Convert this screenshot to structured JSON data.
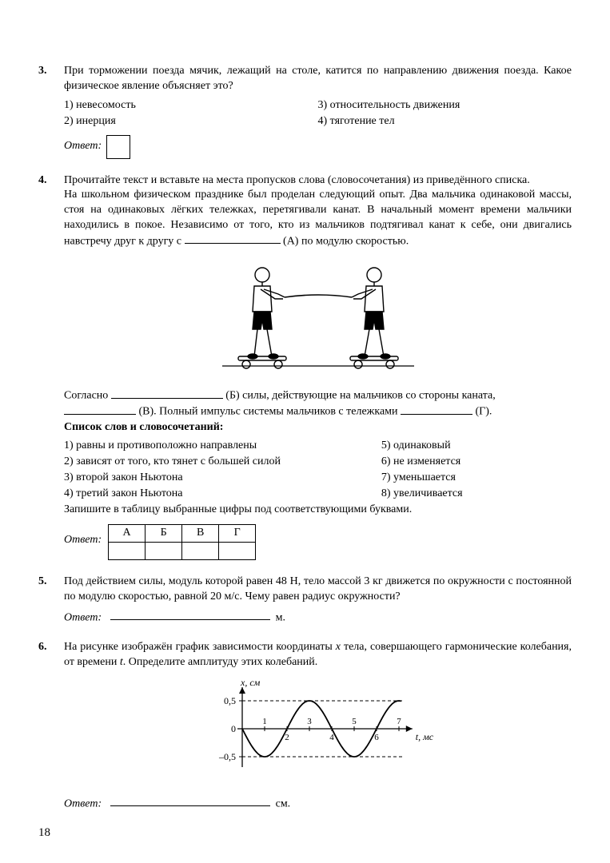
{
  "page_number": "18",
  "q3": {
    "number": "3.",
    "text": "При торможении поезда мячик, лежащий на столе, катится по направлению движения поезда. Какое физическое явление объясняет это?",
    "opts_left": [
      "1)  невесомость",
      "2)  инерция"
    ],
    "opts_right": [
      "3)  относительность движения",
      "4)  тяготение тел"
    ],
    "answer_label": "Ответ:"
  },
  "q4": {
    "number": "4.",
    "intro": "Прочитайте текст и вставьте на места пропусков слова (словосочетания) из приведённого списка.",
    "para_lead": "На школьном физическом празднике был проделан следующий опыт. Два мальчика одинаковой массы, стоя на одинаковых лёгких тележках, перетягивали канат. В начальный момент времени мальчики находились в покое. Независимо от того, кто из мальчиков подтягивал канат к себе, они двигались навстречу друг к другу с ",
    "para_tail": " (А) по модулю скоростью.",
    "line2_a": "Согласно ",
    "line2_b": " (Б) силы, действующие на мальчиков со стороны каната, ",
    "line3_a": " (В). Полный импульс системы мальчиков с тележками ",
    "line3_b": " (Г).",
    "list_title": "Список слов и словосочетаний:",
    "list_left": [
      "1)  равны и противоположно направлены",
      "2)  зависят от того, кто тянет с большей силой",
      "3)  второй закон Ньютона",
      "4)  третий закон Ньютона"
    ],
    "list_right": [
      "5)  одинаковый",
      "6)  не изменяется",
      "7)  уменьшается",
      "8)  увеличивается"
    ],
    "table_instruction": "Запишите в таблицу выбранные цифры под соответствующими буквами.",
    "table_headers": [
      "А",
      "Б",
      "В",
      "Г"
    ],
    "answer_label": "Ответ:"
  },
  "q5": {
    "number": "5.",
    "text": "Под действием силы, модуль которой равен 48 Н, тело массой 3 кг движется по окружности с постоянной по модулю скоростью, равной 20 м/с. Чему равен радиус окружности?",
    "answer_label": "Ответ:",
    "unit": "м."
  },
  "q6": {
    "number": "6.",
    "text_a": "На рисунке изображён график зависимости координаты ",
    "text_var": "x",
    "text_b": " тела, совершающего гармонические колебания, от времени ",
    "text_var2": "t",
    "text_c": ". Определите амплитуду этих колебаний.",
    "answer_label": "Ответ:",
    "unit": "см.",
    "chart": {
      "type": "line",
      "y_label": "x, см",
      "x_label": "t, мс",
      "y_ticks": [
        "0,5",
        "0",
        "–0,5"
      ],
      "x_ticks": [
        "1",
        "2",
        "3",
        "4",
        "5",
        "6",
        "7"
      ],
      "amplitude": 0.5,
      "period_ms": 4,
      "phase_start_value": 0,
      "line_color": "#000000",
      "grid_dash": "4,3",
      "axis_color": "#000000",
      "background": "#ffffff"
    }
  }
}
